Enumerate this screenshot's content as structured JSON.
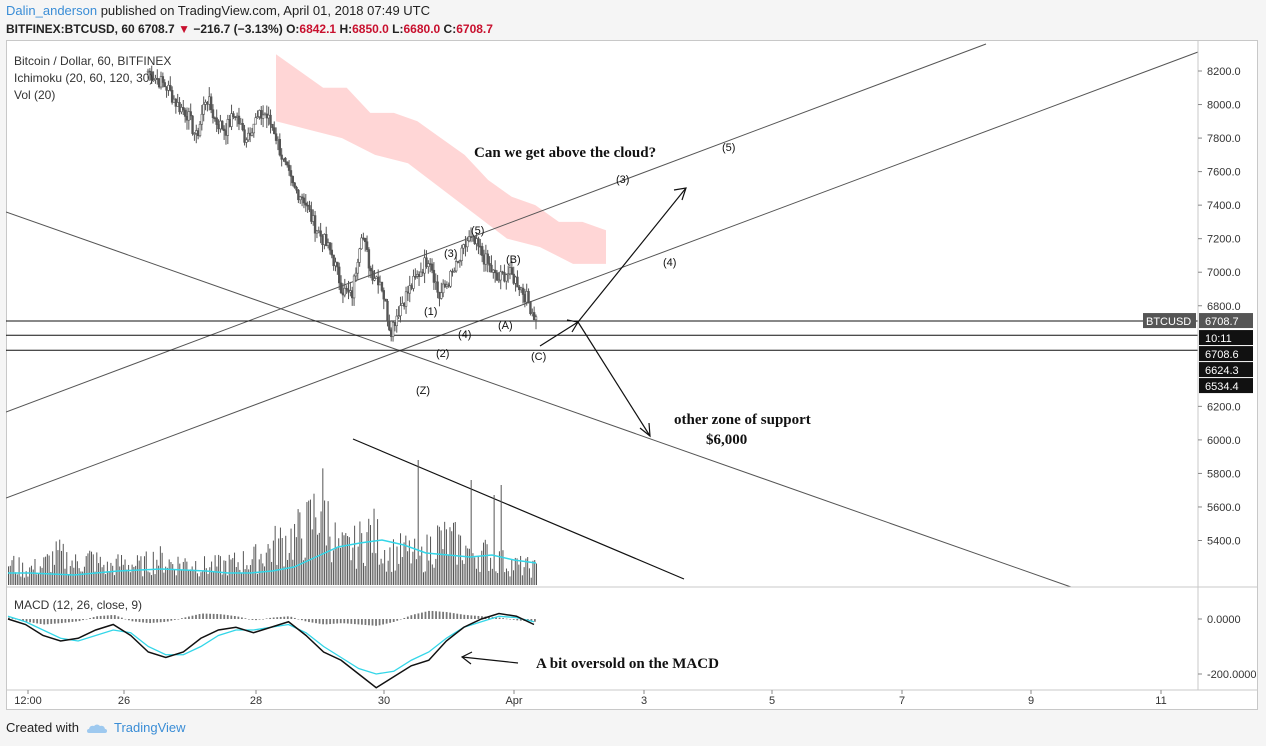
{
  "header": {
    "author": "Dalin_anderson",
    "published": "published on TradingView.com, April 01, 2018 07:49 UTC"
  },
  "symbol_row": {
    "symbol": "BITFINEX:BTCUSD, 60",
    "last": "6708.7",
    "down_arrow": "▼",
    "change": "−216.7 (−3.13%)",
    "o_label": "O:",
    "o_value": "6842.1",
    "h_label": "H:",
    "h_value": "6850.0",
    "l_label": "L:",
    "l_value": "6680.0",
    "c_label": "C:",
    "c_value": "6708.7"
  },
  "legend": {
    "line1": "Bitcoin / Dollar, 60, BITFINEX",
    "line2": "Ichimoku (20, 60, 120, 30)",
    "line3": "Vol (20)",
    "macd": "MACD (12, 26, close, 9)"
  },
  "footer": {
    "created_with": "Created with",
    "brand": "TradingView"
  },
  "colors": {
    "cloud": "#ffd6d6",
    "signal": "#33d6e8",
    "price_tag": "#555555",
    "level_tag": "#111111"
  },
  "chart_data": {
    "type": "candlestick",
    "price_axis": {
      "range": [
        5300,
        8300
      ],
      "ticks": [
        "8200.0",
        "8000.0",
        "7800.0",
        "7600.0",
        "7400.0",
        "7200.0",
        "7000.0",
        "6800.0",
        "6200.0",
        "6000.0",
        "5800.0",
        "5600.0",
        "5400.0"
      ]
    },
    "macd_axis": {
      "range": [
        -250,
        110
      ],
      "ticks": [
        "0.0000",
        "-200.0000"
      ]
    },
    "time_axis": {
      "ticks": [
        "12:00",
        "26",
        "28",
        "30",
        "Apr",
        "3",
        "5",
        "7",
        "9",
        "11"
      ]
    },
    "price_tags": [
      {
        "label": "BTCUSD",
        "value": "6708.7",
        "kind": "current"
      },
      {
        "label": "",
        "value": "10:11",
        "kind": "countdown"
      },
      {
        "label": "",
        "value": "6708.6",
        "kind": "level"
      },
      {
        "label": "",
        "value": "6624.3",
        "kind": "level"
      },
      {
        "label": "",
        "value": "6534.4",
        "kind": "level"
      }
    ],
    "horizontal_levels": [
      6708.7,
      6624.3,
      6534.4
    ],
    "price_path": [
      8200,
      8150,
      8100,
      8000,
      7950,
      7800,
      8050,
      7900,
      7850,
      7950,
      7800,
      7900,
      7950,
      7850,
      7650,
      7500,
      7450,
      7300,
      7200,
      7100,
      6900,
      6850,
      7250,
      7000,
      6950,
      6650,
      6800,
      6900,
      7000,
      7100,
      6850,
      6950,
      7050,
      7200,
      7150,
      7050,
      6950,
      7000,
      6950,
      6850,
      6720
    ],
    "cloud_path": [
      8300,
      8200,
      8100,
      8100,
      7950,
      7950,
      7900,
      7800,
      7700,
      7550,
      7450,
      7400,
      7300,
      7300,
      7250
    ],
    "cloud_bottom": [
      7900,
      7850,
      7800,
      7700,
      7650,
      7500,
      7350,
      7200,
      7150,
      7050,
      7050
    ],
    "volume_path": [
      30,
      20,
      25,
      40,
      28,
      35,
      22,
      30,
      25,
      35,
      28,
      30,
      24,
      26,
      30,
      35,
      50,
      60,
      70,
      110,
      45,
      50,
      70,
      40,
      45,
      35,
      60,
      55,
      45,
      40,
      30,
      25,
      22
    ],
    "volume_ma": [
      12,
      12,
      11,
      10,
      12,
      14,
      15,
      16,
      15,
      14,
      12,
      12,
      14,
      18,
      28,
      38,
      42,
      45,
      40,
      32,
      30,
      28,
      30,
      25,
      22
    ],
    "macd_path": [
      0,
      -20,
      -60,
      -80,
      -70,
      -40,
      -20,
      -60,
      -120,
      -140,
      -120,
      -70,
      -40,
      -30,
      -50,
      -30,
      -10,
      -60,
      -120,
      -150,
      -200,
      -250,
      -210,
      -170,
      -150,
      -80,
      -30,
      0,
      20,
      10,
      -20
    ],
    "signal_path": [
      10,
      -10,
      -40,
      -70,
      -80,
      -60,
      -40,
      -50,
      -100,
      -130,
      -130,
      -100,
      -60,
      -40,
      -40,
      -30,
      -20,
      -50,
      -100,
      -140,
      -180,
      -200,
      -190,
      -150,
      -120,
      -70,
      -30,
      -10,
      10,
      5,
      -10
    ],
    "macd_hist": [
      5,
      -10,
      -20,
      -15,
      -8,
      10,
      15,
      -8,
      -15,
      -10,
      5,
      20,
      18,
      10,
      -5,
      5,
      10,
      -10,
      -20,
      -15,
      -20,
      -25,
      -10,
      15,
      30,
      25,
      15,
      10,
      5,
      -5,
      -10
    ],
    "waves": [
      "(1)",
      "(2)",
      "(3)",
      "(4)",
      "(5)",
      "(A)",
      "(B)",
      "(C)",
      "(Z)",
      "(3)",
      "(4)",
      "(5)"
    ],
    "annotations": [
      "Can we get above the cloud?",
      "other zone of support",
      "$6,000",
      "A bit oversold on the MACD"
    ]
  }
}
